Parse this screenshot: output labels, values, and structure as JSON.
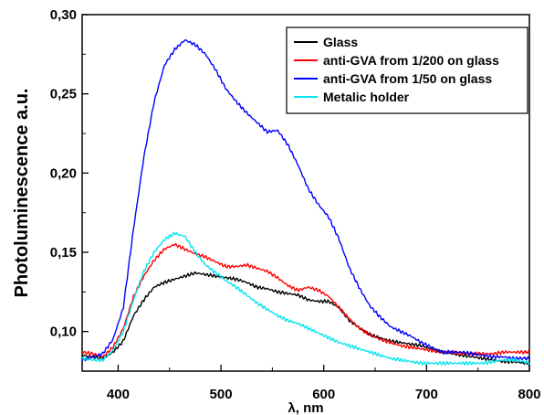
{
  "chart_data": {
    "type": "line",
    "xlabel": "λ, nm",
    "ylabel": "Photoluminescence a.u.",
    "xlim": [
      365,
      800
    ],
    "ylim": [
      0.075,
      0.3
    ],
    "x_ticks": [
      400,
      500,
      600,
      700,
      800
    ],
    "x_tick_labels": [
      "400",
      "500",
      "600",
      "700",
      "800"
    ],
    "y_ticks": [
      0.1,
      0.15,
      0.2,
      0.25,
      0.3
    ],
    "y_tick_labels": [
      "0,10",
      "0,15",
      "0,20",
      "0,25",
      "0,30"
    ],
    "grid": false,
    "legend_position": "top-right",
    "series": [
      {
        "name": "Glass",
        "color": "#000000",
        "x": [
          365,
          375,
          385,
          395,
          405,
          415,
          425,
          435,
          445,
          455,
          465,
          475,
          485,
          495,
          505,
          515,
          525,
          535,
          545,
          555,
          565,
          575,
          585,
          595,
          605,
          615,
          625,
          635,
          645,
          655,
          665,
          675,
          685,
          695,
          705,
          715,
          725,
          735,
          745,
          755,
          765,
          775,
          785,
          795,
          800
        ],
        "y": [
          0.085,
          0.084,
          0.083,
          0.087,
          0.094,
          0.11,
          0.12,
          0.128,
          0.131,
          0.133,
          0.135,
          0.137,
          0.136,
          0.135,
          0.134,
          0.133,
          0.131,
          0.128,
          0.127,
          0.125,
          0.124,
          0.123,
          0.12,
          0.119,
          0.119,
          0.115,
          0.107,
          0.102,
          0.098,
          0.096,
          0.094,
          0.093,
          0.092,
          0.091,
          0.089,
          0.087,
          0.086,
          0.085,
          0.084,
          0.083,
          0.082,
          0.081,
          0.081,
          0.08,
          0.08
        ]
      },
      {
        "name": "anti-GVA from 1/200 on glass",
        "color": "#ff0000",
        "x": [
          365,
          375,
          385,
          395,
          405,
          415,
          425,
          435,
          445,
          455,
          465,
          475,
          485,
          495,
          505,
          515,
          525,
          535,
          545,
          555,
          565,
          575,
          585,
          595,
          605,
          615,
          625,
          635,
          645,
          655,
          665,
          675,
          685,
          695,
          705,
          715,
          725,
          735,
          745,
          755,
          765,
          775,
          785,
          795,
          800
        ],
        "y": [
          0.087,
          0.086,
          0.084,
          0.09,
          0.102,
          0.122,
          0.135,
          0.145,
          0.152,
          0.155,
          0.152,
          0.149,
          0.147,
          0.144,
          0.141,
          0.141,
          0.142,
          0.14,
          0.138,
          0.134,
          0.129,
          0.126,
          0.128,
          0.126,
          0.122,
          0.115,
          0.108,
          0.102,
          0.098,
          0.095,
          0.093,
          0.091,
          0.09,
          0.089,
          0.088,
          0.087,
          0.087,
          0.086,
          0.086,
          0.086,
          0.086,
          0.087,
          0.087,
          0.087,
          0.087
        ]
      },
      {
        "name": "anti-GVA from 1/50 on glass",
        "color": "#0000ff",
        "x": [
          365,
          375,
          385,
          395,
          405,
          415,
          425,
          435,
          445,
          455,
          465,
          475,
          485,
          495,
          505,
          515,
          525,
          535,
          545,
          555,
          565,
          575,
          585,
          595,
          605,
          615,
          625,
          635,
          645,
          655,
          665,
          675,
          685,
          695,
          705,
          715,
          725,
          735,
          745,
          755,
          765,
          775,
          785,
          795,
          800
        ],
        "y": [
          0.082,
          0.084,
          0.086,
          0.095,
          0.115,
          0.165,
          0.21,
          0.245,
          0.268,
          0.278,
          0.284,
          0.281,
          0.275,
          0.265,
          0.253,
          0.245,
          0.238,
          0.232,
          0.226,
          0.227,
          0.218,
          0.205,
          0.19,
          0.18,
          0.172,
          0.158,
          0.14,
          0.127,
          0.116,
          0.109,
          0.103,
          0.1,
          0.097,
          0.093,
          0.09,
          0.087,
          0.087,
          0.087,
          0.086,
          0.085,
          0.084,
          0.084,
          0.083,
          0.083,
          0.083
        ]
      },
      {
        "name": "Metalic holder",
        "color": "#00e5ee",
        "x": [
          365,
          375,
          385,
          395,
          405,
          415,
          425,
          435,
          445,
          455,
          465,
          475,
          485,
          495,
          505,
          515,
          525,
          535,
          545,
          555,
          565,
          575,
          585,
          595,
          605,
          615,
          625,
          635,
          645,
          655,
          665,
          675,
          685,
          695,
          705,
          715,
          725,
          735,
          745,
          755,
          765,
          775,
          785,
          795,
          800
        ],
        "y": [
          0.083,
          0.082,
          0.082,
          0.088,
          0.1,
          0.12,
          0.138,
          0.15,
          0.158,
          0.162,
          0.16,
          0.15,
          0.142,
          0.137,
          0.132,
          0.128,
          0.123,
          0.118,
          0.114,
          0.11,
          0.107,
          0.105,
          0.102,
          0.099,
          0.096,
          0.093,
          0.091,
          0.089,
          0.087,
          0.085,
          0.083,
          0.082,
          0.081,
          0.08,
          0.08,
          0.08,
          0.08,
          0.08,
          0.08,
          0.08,
          0.081,
          0.082,
          0.082,
          0.081,
          0.08
        ]
      }
    ]
  }
}
